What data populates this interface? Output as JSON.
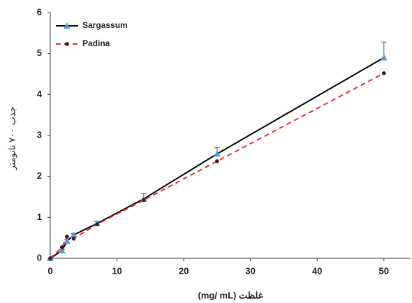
{
  "chart_data": {
    "type": "line",
    "x_label": "غلظت (mg/ mL)",
    "y_label": "جذب ۷۰۰ نانومتر",
    "x": [
      0,
      1.75,
      2.5,
      3.5,
      7,
      14,
      25,
      50
    ],
    "series": [
      {
        "name": "Sargassum",
        "color": "#000000",
        "marker_color": "#5b9bd5",
        "marker": "triangle",
        "dash": false,
        "values": [
          0,
          0.19,
          0.42,
          0.57,
          0.85,
          1.45,
          2.55,
          4.9
        ],
        "errors": [
          0,
          0.02,
          0.03,
          0.03,
          0.05,
          0.13,
          0.15,
          0.38
        ]
      },
      {
        "name": "Padina",
        "color": "#e03030",
        "marker_color": "#3a1a1a",
        "marker": "circle",
        "dash": true,
        "values": [
          0,
          0.27,
          0.53,
          0.48,
          0.83,
          1.42,
          2.37,
          4.52
        ]
      }
    ],
    "xlim": [
      0,
      54
    ],
    "xticks": [
      0,
      10,
      20,
      30,
      40,
      50
    ],
    "ylim": [
      0,
      6
    ],
    "yticks": [
      0,
      1,
      2,
      3,
      4,
      5,
      6
    ],
    "grid": false,
    "legend": "top-left"
  }
}
